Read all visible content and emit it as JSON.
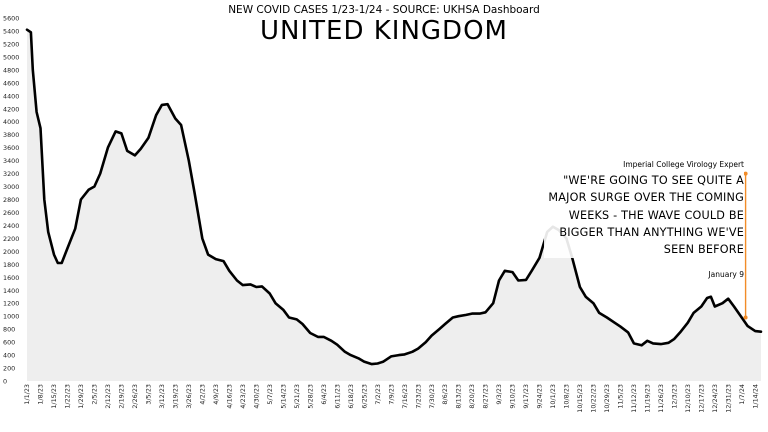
{
  "chart_data": {
    "type": "line",
    "subtitle": "NEW COVID CASES 1/23-1/24 - SOURCE: UKHSA Dashboard",
    "title": "UNITED KINGDOM",
    "ylim": [
      0,
      5600
    ],
    "y_ticks": [
      0,
      200,
      400,
      600,
      800,
      1000,
      1200,
      1400,
      1600,
      1800,
      2000,
      2200,
      2400,
      2600,
      2800,
      3000,
      3200,
      3400,
      3600,
      3800,
      4000,
      4200,
      4400,
      4600,
      4800,
      5000,
      5200,
      5400,
      5600
    ],
    "x_tick_labels": [
      "1/1/23",
      "1/8/23",
      "1/15/23",
      "1/22/23",
      "1/29/23",
      "2/5/23",
      "2/12/23",
      "2/19/23",
      "2/26/23",
      "3/5/23",
      "3/12/23",
      "3/19/23",
      "3/26/23",
      "4/2/23",
      "4/9/23",
      "4/16/23",
      "4/23/23",
      "4/30/23",
      "5/7/23",
      "5/14/23",
      "5/21/23",
      "5/28/23",
      "6/4/23",
      "6/11/23",
      "6/18/23",
      "6/25/23",
      "7/2/23",
      "7/9/23",
      "7/16/23",
      "7/23/23",
      "7/30/23",
      "8/6/23",
      "8/13/23",
      "8/20/23",
      "8/27/23",
      "9/3/23",
      "9/10/23",
      "9/17/23",
      "9/24/23",
      "10/1/23",
      "10/8/23",
      "10/15/23",
      "10/22/23",
      "10/29/23",
      "11/5/23",
      "11/12/23",
      "11/19/23",
      "11/26/23",
      "12/3/23",
      "12/10/23",
      "12/17/23",
      "12/24/23",
      "12/31/23",
      "1/7/24",
      "1/14/24"
    ],
    "grid": false,
    "legend": "none",
    "series": [
      {
        "color": "#000000",
        "points": [
          [
            "1/1/23",
            5420
          ],
          [
            "1/3/23",
            5380
          ],
          [
            "1/4/23",
            4800
          ],
          [
            "1/6/23",
            4150
          ],
          [
            "1/8/23",
            3900
          ],
          [
            "1/10/23",
            2800
          ],
          [
            "1/12/23",
            2300
          ],
          [
            "1/15/23",
            1950
          ],
          [
            "1/17/23",
            1820
          ],
          [
            "1/19/23",
            1820
          ],
          [
            "1/22/23",
            2050
          ],
          [
            "1/26/23",
            2350
          ],
          [
            "1/29/23",
            2800
          ],
          [
            "2/2/23",
            2950
          ],
          [
            "2/5/23",
            3000
          ],
          [
            "2/8/23",
            3200
          ],
          [
            "2/12/23",
            3600
          ],
          [
            "2/16/23",
            3850
          ],
          [
            "2/19/23",
            3820
          ],
          [
            "2/22/23",
            3550
          ],
          [
            "2/26/23",
            3480
          ],
          [
            "3/1/23",
            3580
          ],
          [
            "3/5/23",
            3750
          ],
          [
            "3/9/23",
            4100
          ],
          [
            "3/12/23",
            4260
          ],
          [
            "3/15/23",
            4270
          ],
          [
            "3/19/23",
            4050
          ],
          [
            "3/22/23",
            3950
          ],
          [
            "3/26/23",
            3400
          ],
          [
            "3/29/23",
            2900
          ],
          [
            "4/2/23",
            2200
          ],
          [
            "4/5/23",
            1950
          ],
          [
            "4/9/23",
            1880
          ],
          [
            "4/13/23",
            1850
          ],
          [
            "4/16/23",
            1700
          ],
          [
            "4/20/23",
            1550
          ],
          [
            "4/23/23",
            1480
          ],
          [
            "4/27/23",
            1490
          ],
          [
            "4/30/23",
            1450
          ],
          [
            "5/3/23",
            1460
          ],
          [
            "5/7/23",
            1350
          ],
          [
            "5/10/23",
            1200
          ],
          [
            "5/14/23",
            1100
          ],
          [
            "5/17/23",
            980
          ],
          [
            "5/21/23",
            950
          ],
          [
            "5/24/23",
            880
          ],
          [
            "5/28/23",
            740
          ],
          [
            "6/1/23",
            680
          ],
          [
            "6/4/23",
            680
          ],
          [
            "6/8/23",
            620
          ],
          [
            "6/11/23",
            560
          ],
          [
            "6/15/23",
            450
          ],
          [
            "6/18/23",
            400
          ],
          [
            "6/22/23",
            350
          ],
          [
            "6/25/23",
            300
          ],
          [
            "6/29/23",
            260
          ],
          [
            "7/2/23",
            270
          ],
          [
            "7/5/23",
            300
          ],
          [
            "7/9/23",
            380
          ],
          [
            "7/13/23",
            400
          ],
          [
            "7/16/23",
            410
          ],
          [
            "7/20/23",
            450
          ],
          [
            "7/23/23",
            500
          ],
          [
            "7/27/23",
            600
          ],
          [
            "7/30/23",
            700
          ],
          [
            "8/3/23",
            800
          ],
          [
            "8/6/23",
            880
          ],
          [
            "8/10/23",
            980
          ],
          [
            "8/13/23",
            1000
          ],
          [
            "8/17/23",
            1020
          ],
          [
            "8/20/23",
            1040
          ],
          [
            "8/24/23",
            1040
          ],
          [
            "8/27/23",
            1060
          ],
          [
            "8/31/23",
            1200
          ],
          [
            "9/3/23",
            1550
          ],
          [
            "9/6/23",
            1700
          ],
          [
            "9/10/23",
            1680
          ],
          [
            "9/13/23",
            1550
          ],
          [
            "9/17/23",
            1560
          ],
          [
            "9/20/23",
            1700
          ],
          [
            "9/24/23",
            1900
          ],
          [
            "9/28/23",
            2300
          ],
          [
            "10/1/23",
            2380
          ],
          [
            "10/4/23",
            2330
          ],
          [
            "10/8/23",
            2200
          ],
          [
            "10/11/23",
            1900
          ],
          [
            "10/15/23",
            1450
          ],
          [
            "10/18/23",
            1300
          ],
          [
            "10/22/23",
            1200
          ],
          [
            "10/25/23",
            1050
          ],
          [
            "10/29/23",
            980
          ],
          [
            "11/2/23",
            900
          ],
          [
            "11/5/23",
            840
          ],
          [
            "11/9/23",
            750
          ],
          [
            "11/12/23",
            580
          ],
          [
            "11/16/23",
            550
          ],
          [
            "11/19/23",
            620
          ],
          [
            "11/22/23",
            580
          ],
          [
            "11/26/23",
            570
          ],
          [
            "11/30/23",
            590
          ],
          [
            "12/3/23",
            650
          ],
          [
            "12/6/23",
            750
          ],
          [
            "12/10/23",
            900
          ],
          [
            "12/13/23",
            1050
          ],
          [
            "12/17/23",
            1150
          ],
          [
            "12/20/23",
            1280
          ],
          [
            "12/22/23",
            1300
          ],
          [
            "12/24/23",
            1150
          ],
          [
            "12/28/23",
            1200
          ],
          [
            "12/31/23",
            1270
          ],
          [
            "1/3/24",
            1150
          ],
          [
            "1/7/24",
            980
          ],
          [
            "1/10/24",
            850
          ],
          [
            "1/14/24",
            770
          ],
          [
            "1/17/24",
            760
          ]
        ]
      }
    ],
    "annotation": {
      "source": "Imperial College Virology Expert",
      "quote": "\"WE'RE GOING TO SEE QUITE A MAJOR SURGE OVER THE COMING WEEKS - THE WAVE COULD BE BIGGER THAN ANYTHING WE'VE SEEN BEFORE",
      "date": "January 9",
      "marker_color": "#f28c28",
      "marker_from": [
        "1/9/24",
        3200
      ],
      "marker_to": [
        "1/9/24",
        980
      ]
    }
  }
}
